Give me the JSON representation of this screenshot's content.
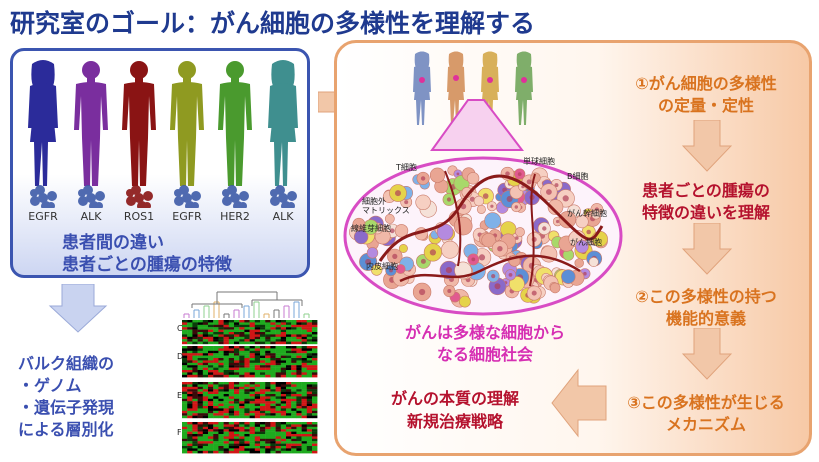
{
  "title": "研究室のゴール：がん細胞の多様性を理解する",
  "left_panel": {
    "figures": [
      {
        "gene": "EGFR",
        "color": "#2b2b9a"
      },
      {
        "gene": "ALK",
        "color": "#7a2e9e"
      },
      {
        "gene": "ROS1",
        "color": "#8a1414"
      },
      {
        "gene": "EGFR",
        "color": "#8f9a21"
      },
      {
        "gene": "HER2",
        "color": "#4a9a2e"
      },
      {
        "gene": "ALK",
        "color": "#3f8f8f"
      }
    ],
    "caption_line1": "患者間の違い",
    "caption_line2": "患者ごとの腫瘍の特徴"
  },
  "bulk": {
    "line1": "バルク組織の",
    "line2": "・ゲノム",
    "line3": "・遺伝子発現",
    "line4": "による層別化",
    "heatmap_rows": [
      "C",
      "D",
      "E",
      "F"
    ]
  },
  "right_panel": {
    "top_figure_colors": [
      "#7f93c4",
      "#d79a6a",
      "#d8b05a",
      "#7fae6a"
    ],
    "cell_labels": {
      "t_cell": "T細胞",
      "monocyte": "単球細胞",
      "b_cell": "B細胞",
      "ecm": "細胞外\nマトリックス",
      "fibroblast": "線維芽細胞",
      "stem_cell": "がん幹細胞",
      "cancer_cell": "がん細胞",
      "endothelial": "内皮細胞"
    },
    "society_line1": "がんは多様な細胞から",
    "society_line2": "なる細胞社会",
    "step1_line1": "①がん細胞の多様性",
    "step1_line2": "の定量・定性",
    "step2_line1": "患者ごとの腫瘍の",
    "step2_line2": "特徴の違いを理解",
    "step3_line1": "②この多様性の持つ",
    "step3_line2": "機能的意義",
    "step4_line1": "③この多様性が生じる",
    "step4_line2": "メカニズム",
    "goal_line1": "がんの本質の理解",
    "goal_line2": "新規治療戦略"
  },
  "colors": {
    "title": "#1f3a8f",
    "left_border": "#3b55b0",
    "right_border": "#e8a36f",
    "arrow_fill": "#f2c7a8",
    "blue_arrow_fill": "#c9d3f0"
  }
}
